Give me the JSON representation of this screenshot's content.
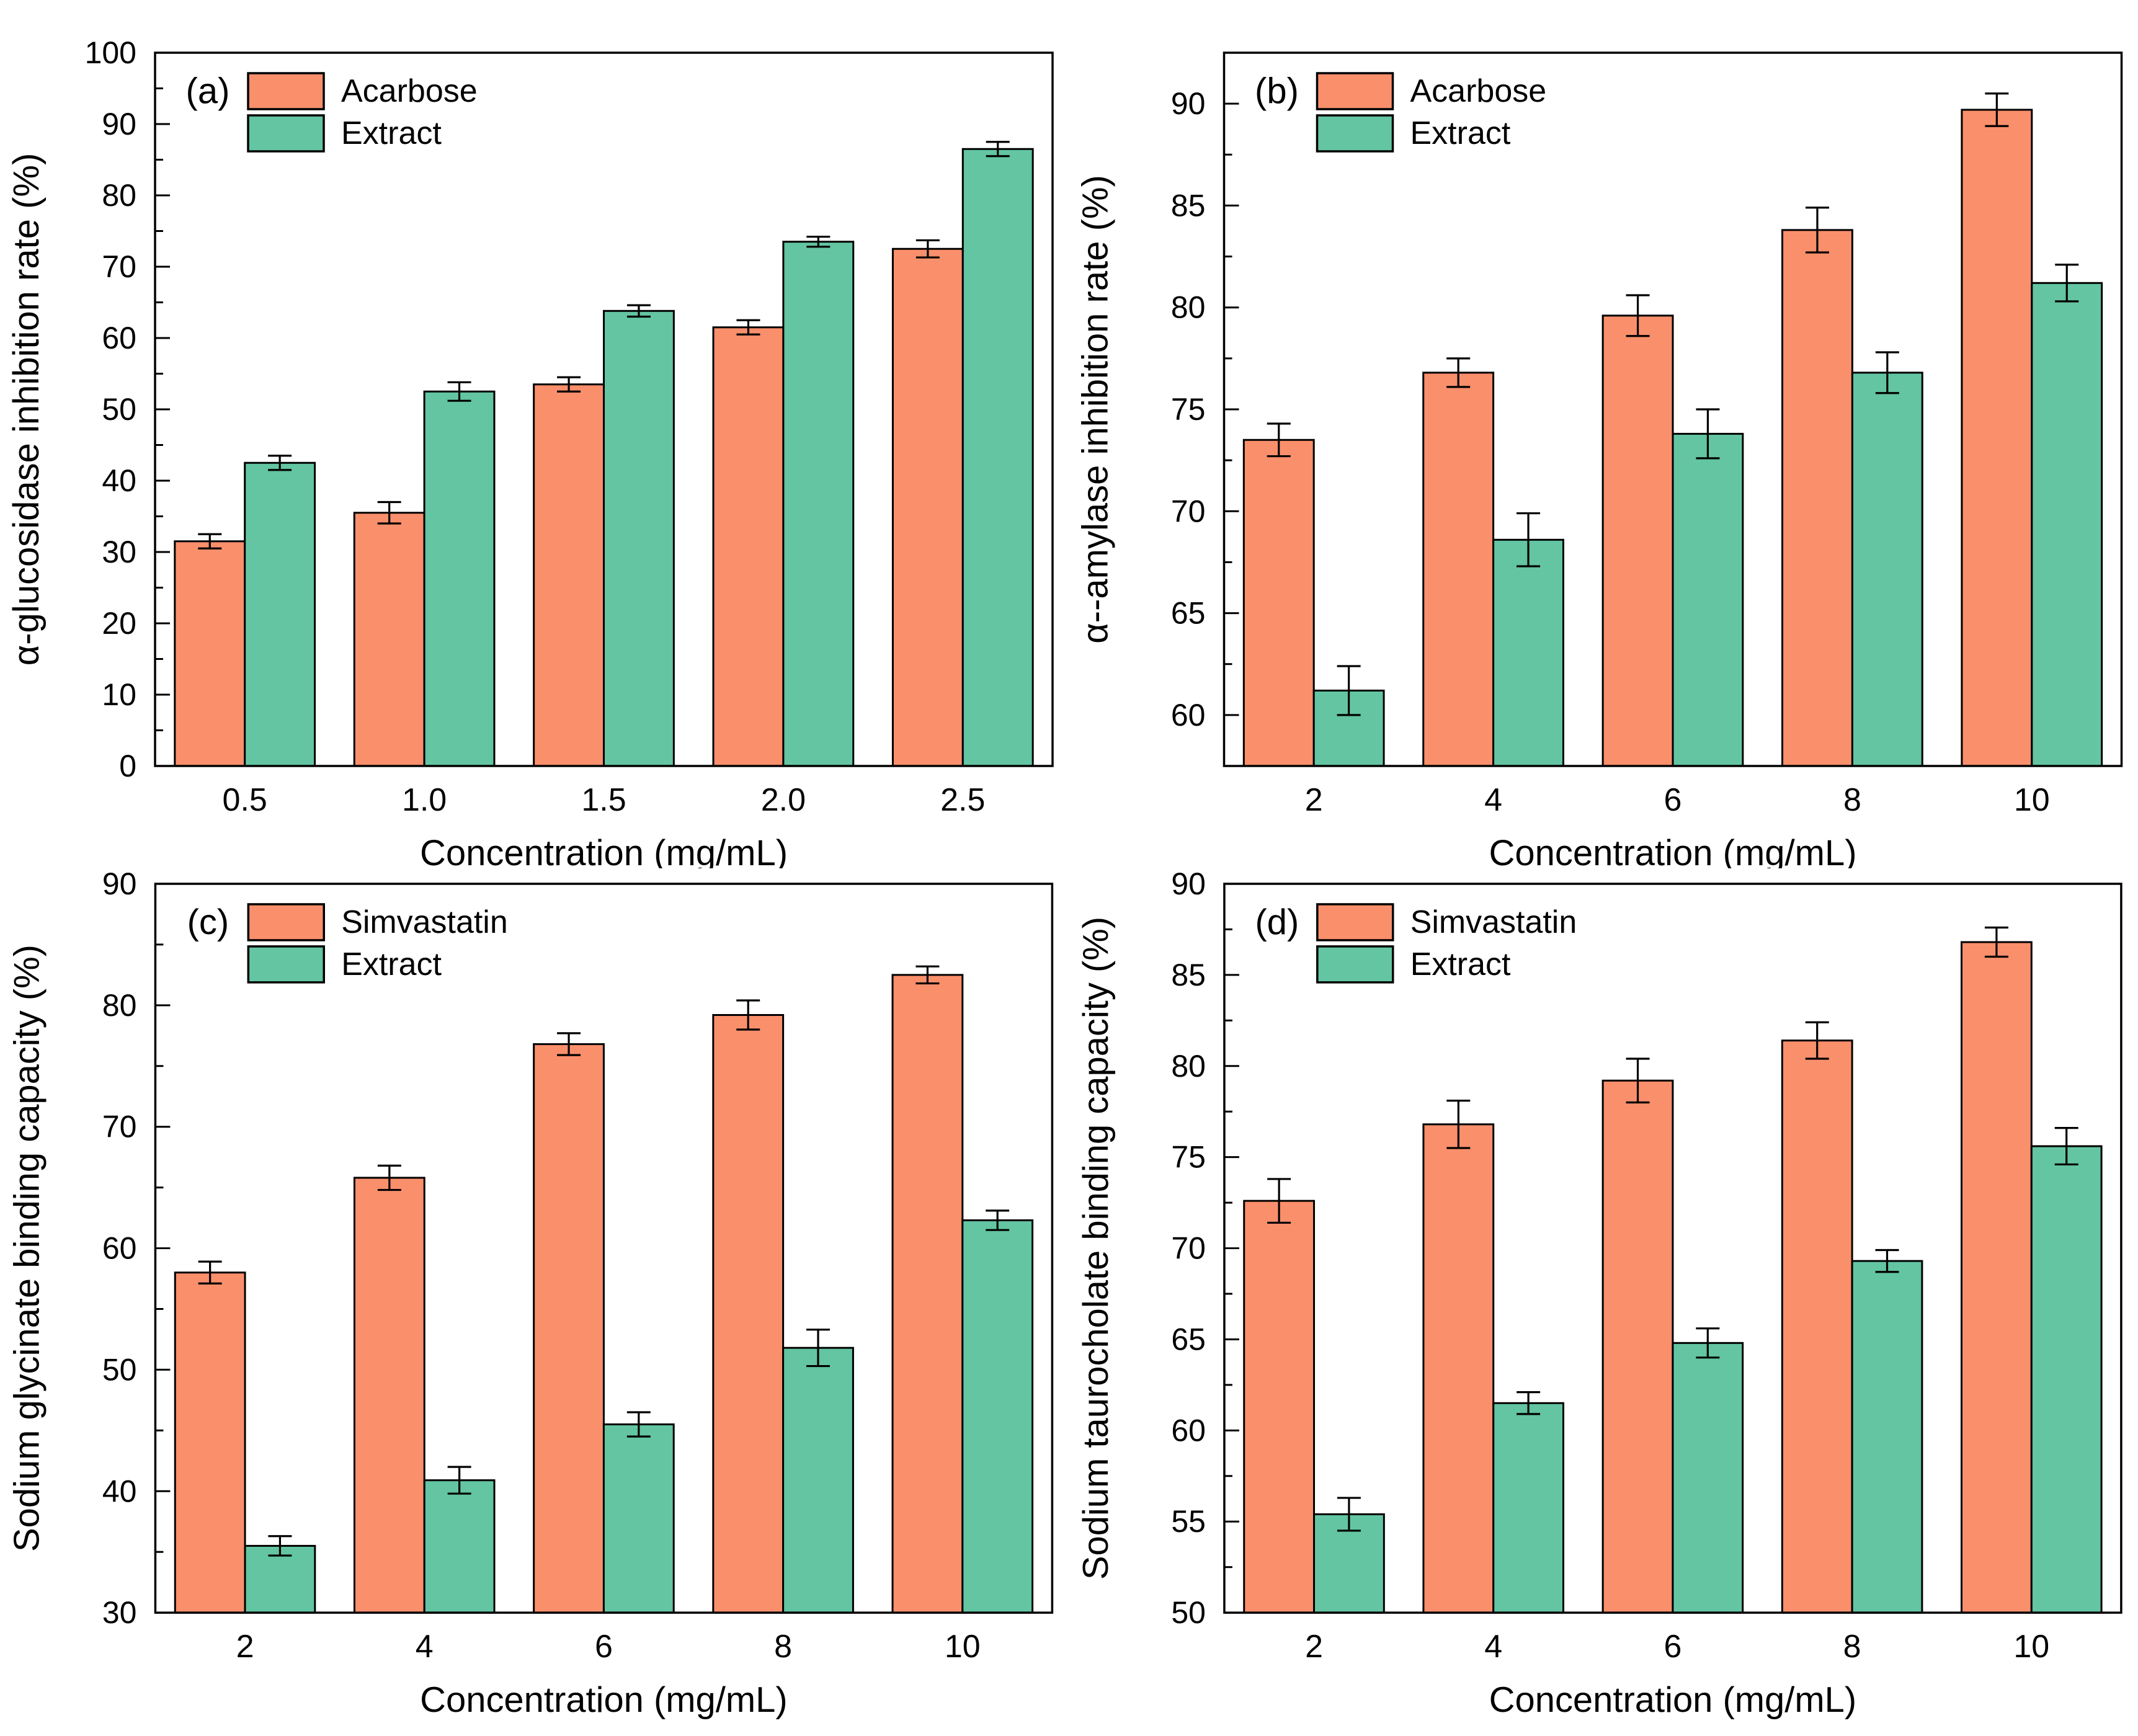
{
  "figure_caption": "",
  "accent_colors": {
    "bar_orange": "#FA8F6C",
    "bar_green": "#63C5A2",
    "axis_black": "#000000"
  },
  "chart_data": [
    {
      "type": "bar",
      "panel_label": "(a)",
      "title": "",
      "xlabel": "Concentration (mg/mL)",
      "ylabel": "α-glucosidase inhibition rate (%)",
      "categories": [
        "0.5",
        "1.0",
        "1.5",
        "2.0",
        "2.5"
      ],
      "series": [
        {
          "name": "Acarbose",
          "color": "#FA8F6C",
          "values": [
            31.5,
            35.5,
            53.5,
            61.5,
            72.5
          ],
          "errors": [
            1.0,
            1.5,
            1.0,
            1.0,
            1.2
          ]
        },
        {
          "name": "Extract",
          "color": "#63C5A2",
          "values": [
            42.5,
            52.5,
            63.8,
            73.5,
            86.5
          ],
          "errors": [
            1.0,
            1.3,
            0.8,
            0.7,
            1.0
          ]
        }
      ],
      "ylim": [
        0,
        100
      ],
      "ytick_major": 10,
      "ytick_minor": 5,
      "ytick_labels": [
        "0",
        "10",
        "20",
        "30",
        "40",
        "50",
        "60",
        "70",
        "80",
        "90",
        "100"
      ],
      "grid": false,
      "legend_position": "top-left"
    },
    {
      "type": "bar",
      "panel_label": "(b)",
      "title": "",
      "xlabel": "Concentration (mg/mL)",
      "ylabel": "α--amylase inhibition rate (%)",
      "categories": [
        "2",
        "4",
        "6",
        "8",
        "10"
      ],
      "series": [
        {
          "name": "Acarbose",
          "color": "#FA8F6C",
          "values": [
            73.5,
            76.8,
            79.6,
            83.8,
            89.7
          ],
          "errors": [
            0.8,
            0.7,
            1.0,
            1.1,
            0.8
          ]
        },
        {
          "name": "Extract",
          "color": "#63C5A2",
          "values": [
            61.2,
            68.6,
            73.8,
            76.8,
            81.2
          ],
          "errors": [
            1.2,
            1.3,
            1.2,
            1.0,
            0.9
          ]
        }
      ],
      "ylim": [
        57.5,
        92.5
      ],
      "ytick_major": 5,
      "ytick_minor": 2.5,
      "ytick_labels": [
        "60",
        "65",
        "70",
        "75",
        "80",
        "85",
        "90"
      ],
      "grid": false,
      "legend_position": "top-left"
    },
    {
      "type": "bar",
      "panel_label": "(c)",
      "title": "",
      "xlabel": "Concentration (mg/mL)",
      "ylabel": "Sodium glycinate binding capacity (%)",
      "categories": [
        "2",
        "4",
        "6",
        "8",
        "10"
      ],
      "series": [
        {
          "name": "Simvastatin",
          "color": "#FA8F6C",
          "values": [
            58.0,
            65.8,
            76.8,
            79.2,
            82.5
          ],
          "errors": [
            0.9,
            1.0,
            0.9,
            1.2,
            0.7
          ]
        },
        {
          "name": "Extract",
          "color": "#63C5A2",
          "values": [
            35.5,
            40.9,
            45.5,
            51.8,
            62.3
          ],
          "errors": [
            0.8,
            1.1,
            1.0,
            1.5,
            0.8
          ]
        }
      ],
      "ylim": [
        30,
        90
      ],
      "ytick_major": 10,
      "ytick_minor": 5,
      "ytick_labels": [
        "30",
        "40",
        "50",
        "60",
        "70",
        "80",
        "90"
      ],
      "grid": false,
      "legend_position": "top-left"
    },
    {
      "type": "bar",
      "panel_label": "(d)",
      "title": "",
      "xlabel": "Concentration (mg/mL)",
      "ylabel": "Sodium taurocholate binding capacity (%)",
      "categories": [
        "2",
        "4",
        "6",
        "8",
        "10"
      ],
      "series": [
        {
          "name": "Simvastatin",
          "color": "#FA8F6C",
          "values": [
            72.6,
            76.8,
            79.2,
            81.4,
            86.8
          ],
          "errors": [
            1.2,
            1.3,
            1.2,
            1.0,
            0.8
          ]
        },
        {
          "name": "Extract",
          "color": "#63C5A2",
          "values": [
            55.4,
            61.5,
            64.8,
            69.3,
            75.6
          ],
          "errors": [
            0.9,
            0.6,
            0.8,
            0.6,
            1.0
          ]
        }
      ],
      "ylim": [
        50,
        90
      ],
      "ytick_major": 5,
      "ytick_minor": 2.5,
      "ytick_labels": [
        "50",
        "55",
        "60",
        "65",
        "70",
        "75",
        "80",
        "85",
        "90"
      ],
      "grid": false,
      "legend_position": "top-left"
    }
  ]
}
